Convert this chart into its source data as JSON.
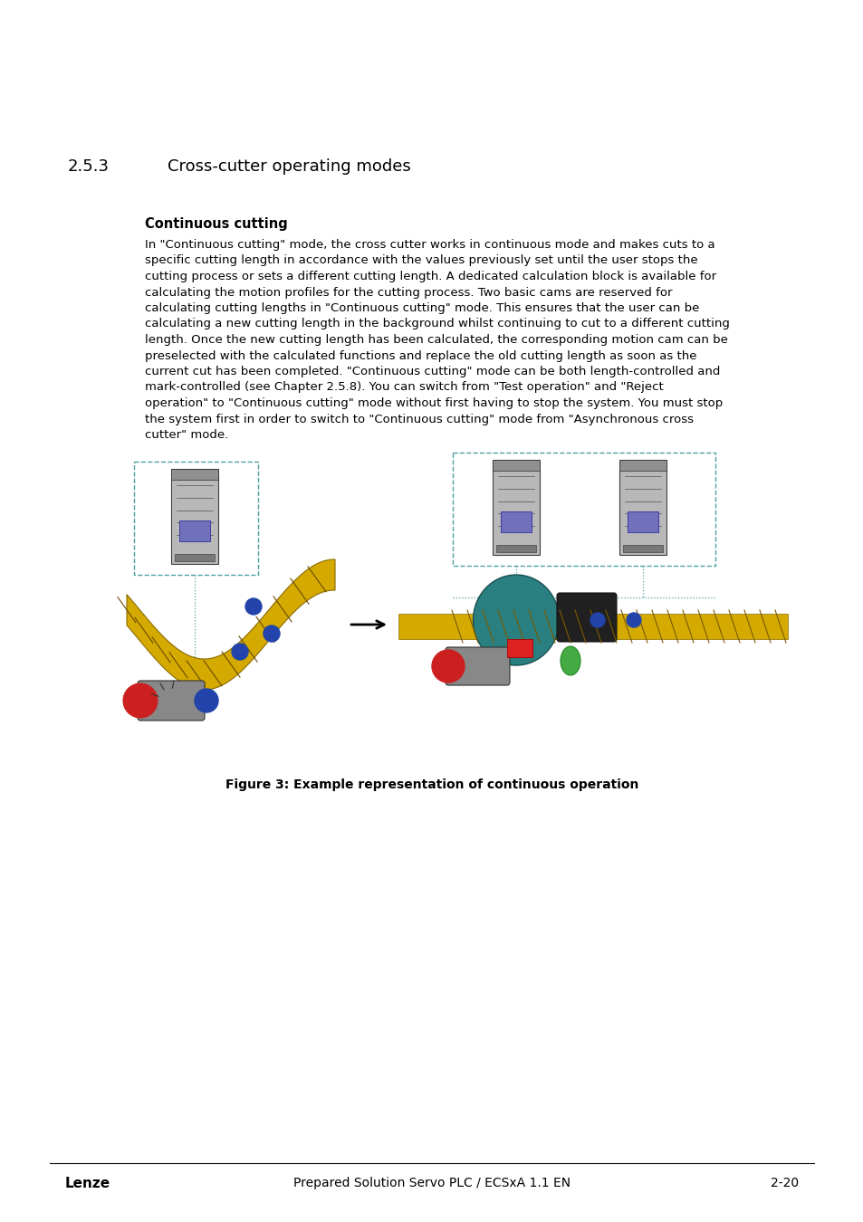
{
  "title_section": "2.5.3",
  "title_text": "Cross-cutter operating modes",
  "subtitle": "Continuous cutting",
  "body_lines": [
    "In \"Continuous cutting\" mode, the cross cutter works in continuous mode and makes cuts to a",
    "specific cutting length in accordance with the values previously set until the user stops the",
    "cutting process or sets a different cutting length. A dedicated calculation block is available for",
    "calculating the motion profiles for the cutting process. Two basic cams are reserved for",
    "calculating cutting lengths in \"Continuous cutting\" mode. This ensures that the user can be",
    "calculating a new cutting length in the background whilst continuing to cut to a different cutting",
    "length. Once the new cutting length has been calculated, the corresponding motion cam can be",
    "preselected with the calculated functions and replace the old cutting length as soon as the",
    "current cut has been completed. \"Continuous cutting\" mode can be both length-controlled and",
    "mark-controlled (see Chapter 2.5.8). You can switch from \"Test operation\" and \"Reject",
    "operation\" to \"Continuous cutting\" mode without first having to stop the system. You must stop",
    "the system first in order to switch to \"Continuous cutting\" mode from \"Asynchronous cross",
    "cutter\" mode."
  ],
  "figure_caption": "Figure 3: Example representation of continuous operation",
  "footer_left": "Lenze",
  "footer_center": "Prepared Solution Servo PLC / ECSxA 1.1 EN",
  "footer_right": "2-20",
  "bg_color": "#ffffff",
  "text_color": "#000000",
  "title_font_size": 13,
  "subtitle_font_size": 10.5,
  "body_font_size": 9.5,
  "footer_font_size": 10
}
